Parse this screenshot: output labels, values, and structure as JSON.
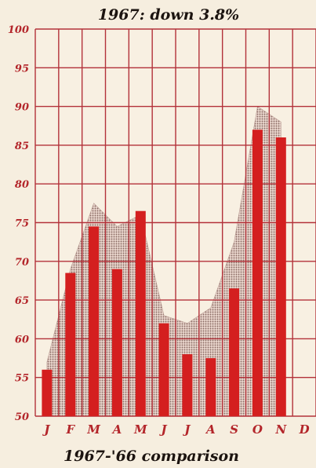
{
  "chart_data": {
    "type": "bar",
    "title": "1967: down 3.8%",
    "subtitle": "1967-'66 comparison",
    "categories": [
      "J",
      "F",
      "M",
      "A",
      "M",
      "J",
      "J",
      "A",
      "S",
      "O",
      "N",
      "D"
    ],
    "series": [
      {
        "values": [
          56,
          68.5,
          74.5,
          69,
          76.5,
          62,
          58,
          57.5,
          66.5,
          87,
          86,
          null
        ]
      },
      {
        "values": [
          57,
          69,
          77.5,
          74.5,
          76,
          63,
          62,
          64,
          72.5,
          90,
          88,
          null
        ]
      }
    ],
    "ylim": [
      50,
      100
    ],
    "yticks": [
      50,
      55,
      60,
      65,
      70,
      75,
      80,
      85,
      90,
      95,
      100
    ],
    "grid": true,
    "colors": {
      "bars": "#d41f1f",
      "area": "#c9a7a0",
      "grid": "#b3323a",
      "ticks": "#b3252a",
      "background": "#f6eedf"
    }
  }
}
